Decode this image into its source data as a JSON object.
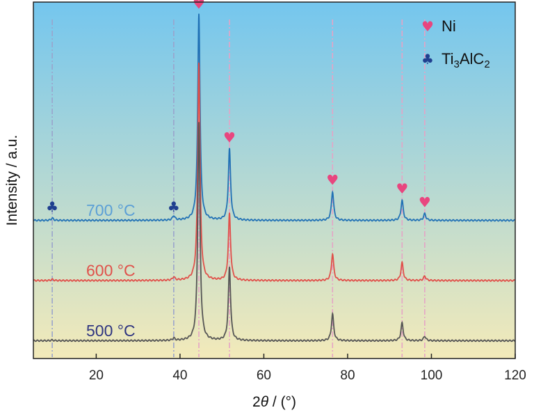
{
  "chart_data": {
    "type": "line",
    "title": "",
    "xlabel_prefix": "2",
    "xlabel_symbol": "θ",
    "xlabel_suffix": " / (°)",
    "ylabel": "Intensity / a.u.",
    "xlim": [
      5,
      120
    ],
    "xticks": [
      20,
      40,
      60,
      80,
      100,
      120
    ],
    "y_ticks_shown": false,
    "background_gradient": [
      "#74c6ee",
      "#f3eab9"
    ],
    "series": [
      {
        "name": "700 °C",
        "color": "#2171b5",
        "label_color": "#5b9fd6",
        "baseline": 0.27,
        "peaks": [
          [
            9.5,
            0.01
          ],
          [
            38.5,
            0.02
          ],
          [
            44.5,
            0.93
          ],
          [
            51.8,
            0.32
          ],
          [
            76.4,
            0.13
          ],
          [
            93.0,
            0.09
          ],
          [
            98.4,
            0.03
          ]
        ]
      },
      {
        "name": "600 °C",
        "color": "#e0504a",
        "label_color": "#e0504a",
        "baseline": 0.0,
        "peaks": [
          [
            9.5,
            0.005
          ],
          [
            38.5,
            0.015
          ],
          [
            44.5,
            0.98
          ],
          [
            51.8,
            0.3
          ],
          [
            76.4,
            0.12
          ],
          [
            93.0,
            0.08
          ],
          [
            98.4,
            0.02
          ]
        ]
      },
      {
        "name": "500 °C",
        "color": "#555555",
        "label_color": "#2f3580",
        "baseline": -0.27,
        "peaks": [
          [
            9.5,
            0.003
          ],
          [
            38.5,
            0.01
          ],
          [
            44.5,
            0.98
          ],
          [
            51.8,
            0.33
          ],
          [
            76.4,
            0.12
          ],
          [
            93.0,
            0.08
          ],
          [
            98.4,
            0.02
          ]
        ]
      }
    ],
    "phase_lines": [
      {
        "x": 9.5,
        "phase": "Ti3AlC2",
        "color": "#9aa4cc"
      },
      {
        "x": 38.5,
        "phase": "Ti3AlC2",
        "color": "#9aa4cc"
      },
      {
        "x": 44.5,
        "phase": "Ni",
        "color": "#e6a3c6"
      },
      {
        "x": 51.8,
        "phase": "Ni",
        "color": "#e6a3c6"
      },
      {
        "x": 76.4,
        "phase": "Ni",
        "color": "#e6a3c6"
      },
      {
        "x": 93.0,
        "phase": "Ni",
        "color": "#e6a3c6"
      },
      {
        "x": 98.4,
        "phase": "Ni",
        "color": "#e6a3c6"
      }
    ],
    "legend": {
      "placement": "top-right",
      "entries": [
        {
          "symbol": "♥",
          "color": "#e8467f",
          "label": "Ni"
        },
        {
          "symbol": "♣",
          "color": "#1f3f8f",
          "label_main": "Ti",
          "sub1": "3",
          "label_mid": "AlC",
          "sub2": "2"
        }
      ]
    },
    "markers": [
      {
        "x": 9.5,
        "symbol": "♣",
        "color": "#1f3f8f",
        "level": 0.31
      },
      {
        "x": 38.5,
        "symbol": "♣",
        "color": "#1f3f8f",
        "level": 0.31
      },
      {
        "x": 44.5,
        "symbol": "♥",
        "color": "#e8467f",
        "level": 1.22
      },
      {
        "x": 51.8,
        "symbol": "♥",
        "color": "#e8467f",
        "level": 0.62
      },
      {
        "x": 76.4,
        "symbol": "♥",
        "color": "#e8467f",
        "level": 0.43
      },
      {
        "x": 93.0,
        "symbol": "♥",
        "color": "#e8467f",
        "level": 0.39
      },
      {
        "x": 98.4,
        "symbol": "♥",
        "color": "#e8467f",
        "level": 0.33
      }
    ]
  }
}
